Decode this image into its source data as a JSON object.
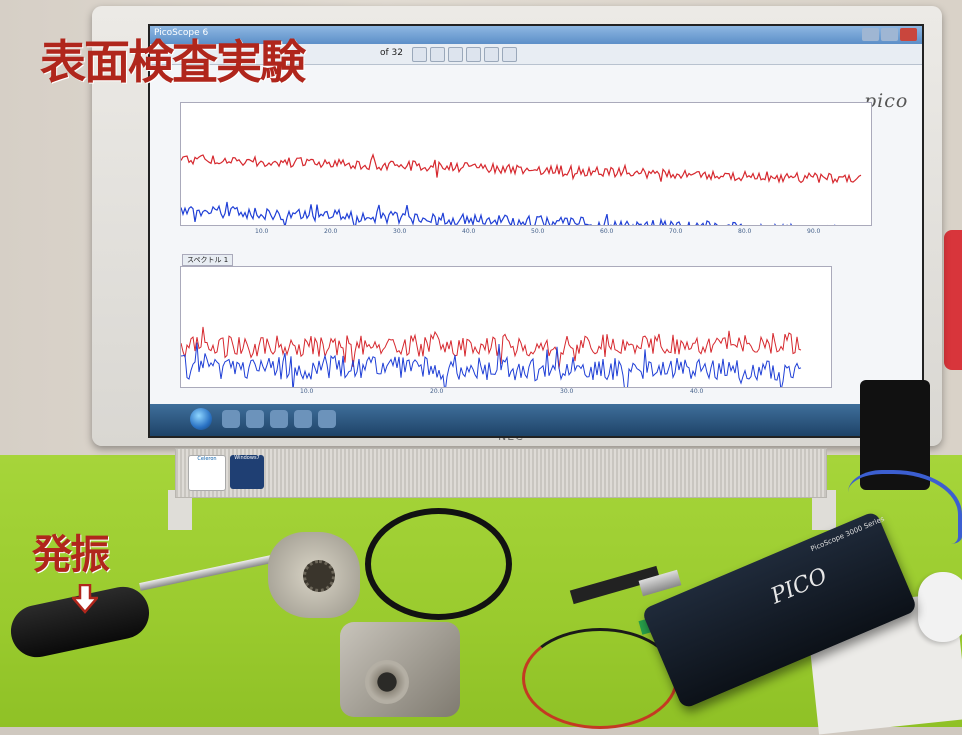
{
  "overlay": {
    "headline": "表面検査実験",
    "excitation_label": "発振"
  },
  "monitor": {
    "brand": "NEC",
    "sticker_celeron": "Celeron",
    "sticker_windows": "Windows7"
  },
  "screen_app": {
    "title": "PicoScope 6",
    "pager_text": "of 32",
    "logo_text": "pico",
    "plot1_ticks": [
      "10.0",
      "20.0",
      "30.0",
      "40.0",
      "50.0",
      "60.0",
      "70.0",
      "80.0",
      "90.0"
    ],
    "plot2_ticks": [
      "10.0",
      "20.0",
      "30.0",
      "40.0"
    ],
    "channel_label": "スペクトル 1"
  },
  "scope_device": {
    "brand": "PICO",
    "series": "PicoScope 3000 Series"
  },
  "colors": {
    "trace_red": "#d6282e",
    "trace_blue": "#1f3fd6",
    "headline": "#b0261c"
  }
}
